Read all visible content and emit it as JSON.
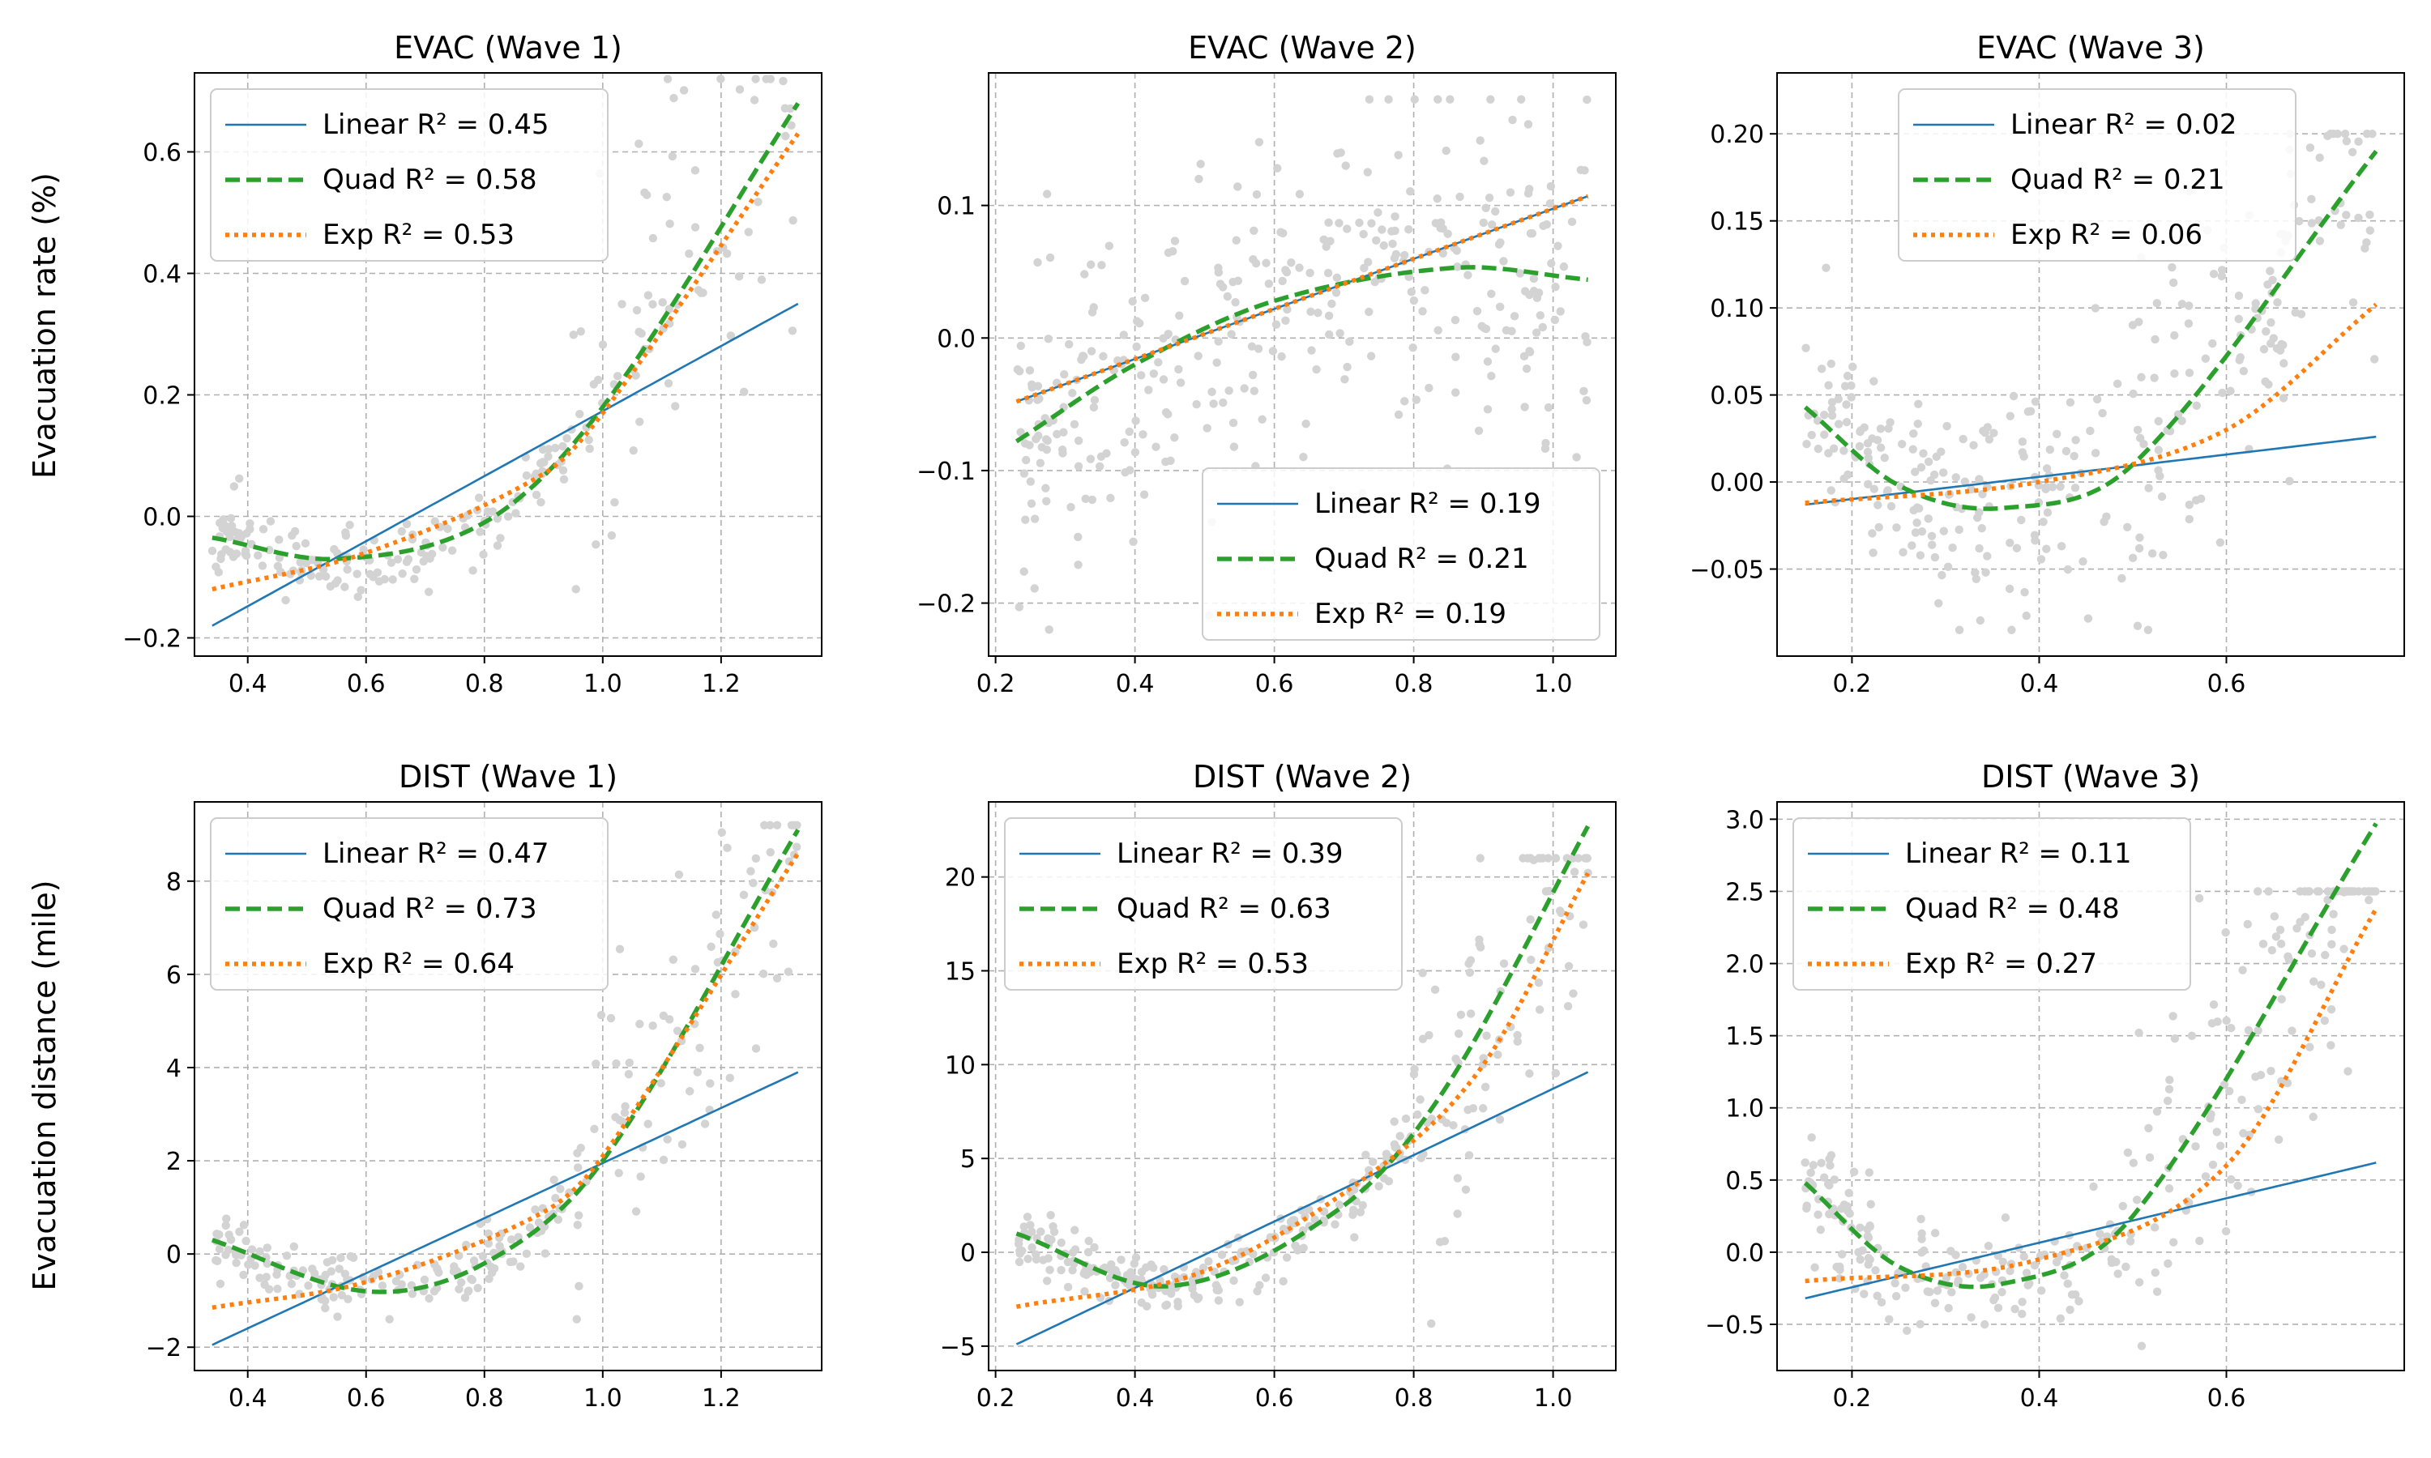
{
  "figure": {
    "row_labels": [
      "Evacuation rate (%)",
      "Evacuation distance (mile)"
    ]
  },
  "colors": {
    "linear": "#1f77b4",
    "quad": "#2ca02c",
    "exp": "#ff7f0e",
    "scatter": "#d3d3d3",
    "grid": "#b0b0b0"
  },
  "chart_data": [
    {
      "type": "scatter",
      "title": "EVAC (Wave 1)",
      "xlabel": "",
      "ylabel": "Evacuation rate (%)",
      "xlim": [
        0.31,
        1.37
      ],
      "ylim": [
        -0.23,
        0.73
      ],
      "xticks": [
        0.4,
        0.6,
        0.8,
        1.0,
        1.2
      ],
      "yticks": [
        -0.2,
        0.0,
        0.2,
        0.4,
        0.6
      ],
      "decimals": 1,
      "grid": true,
      "legend_position": "upper-left",
      "scatter": {
        "x0": 0.34,
        "x1": 1.33,
        "n": 230,
        "mode": "quad",
        "noise_lo": 0.03,
        "noise_hi": 0.18,
        "pivot": 0.95,
        "ymin": -0.21,
        "ymax": 0.72,
        "seed": 11
      },
      "series": [
        {
          "name": "Linear",
          "r2": "0.45",
          "fit": "linear",
          "points": [
            [
              0.34,
              -0.18
            ],
            [
              1.33,
              0.35
            ]
          ]
        },
        {
          "name": "Quad",
          "r2": "0.58",
          "fit": "quad",
          "points": [
            [
              0.34,
              -0.035
            ],
            [
              0.55,
              -0.07
            ],
            [
              0.8,
              -0.01
            ],
            [
              1.0,
              0.18
            ],
            [
              1.33,
              0.68
            ]
          ]
        },
        {
          "name": "Exp",
          "r2": "0.53",
          "fit": "exp",
          "points": [
            [
              0.34,
              -0.12
            ],
            [
              0.6,
              -0.06
            ],
            [
              0.9,
              0.07
            ],
            [
              1.0,
              0.17
            ],
            [
              1.33,
              0.63
            ]
          ]
        }
      ],
      "legend": [
        "Linear R² = 0.45",
        "Quad R² = 0.58",
        "Exp R² = 0.53"
      ]
    },
    {
      "type": "scatter",
      "title": "EVAC (Wave 2)",
      "xlabel": "",
      "ylabel": "",
      "xlim": [
        0.19,
        1.09
      ],
      "ylim": [
        -0.24,
        0.2
      ],
      "xticks": [
        0.2,
        0.4,
        0.6,
        0.8,
        1.0
      ],
      "yticks": [
        -0.2,
        -0.1,
        0.0,
        0.1
      ],
      "decimals": 1,
      "grid": true,
      "legend_position": "lower-right",
      "scatter": {
        "x0": 0.23,
        "x1": 1.05,
        "n": 330,
        "mode": "quad",
        "noise_lo": 0.06,
        "noise_hi": 0.06,
        "pivot": 0.6,
        "ymin": -0.22,
        "ymax": 0.18,
        "seed": 23
      },
      "series": [
        {
          "name": "Linear",
          "r2": "0.19",
          "fit": "linear",
          "points": [
            [
              0.23,
              -0.048
            ],
            [
              1.05,
              0.107
            ]
          ]
        },
        {
          "name": "Quad",
          "r2": "0.21",
          "fit": "quad",
          "points": [
            [
              0.23,
              -0.078
            ],
            [
              0.4,
              -0.02
            ],
            [
              0.6,
              0.028
            ],
            [
              0.86,
              0.053
            ],
            [
              1.05,
              0.044
            ]
          ]
        },
        {
          "name": "Exp",
          "r2": "0.19",
          "fit": "exp",
          "points": [
            [
              0.23,
              -0.048
            ],
            [
              1.05,
              0.107
            ]
          ]
        }
      ],
      "legend": [
        "Linear R² = 0.19",
        "Quad R² = 0.21",
        "Exp R² = 0.19"
      ]
    },
    {
      "type": "scatter",
      "title": "EVAC (Wave 3)",
      "xlabel": "",
      "ylabel": "",
      "xlim": [
        0.12,
        0.79
      ],
      "ylim": [
        -0.1,
        0.235
      ],
      "xticks": [
        0.2,
        0.4,
        0.6
      ],
      "yticks": [
        -0.05,
        0.0,
        0.05,
        0.1,
        0.15,
        0.2
      ],
      "decimals": 2,
      "grid": true,
      "legend_position": "upper-center",
      "scatter": {
        "x0": 0.15,
        "x1": 0.76,
        "n": 300,
        "mode": "quad",
        "noise_lo": 0.03,
        "noise_hi": 0.05,
        "pivot": 0.45,
        "ymin": -0.085,
        "ymax": 0.2,
        "seed": 37
      },
      "series": [
        {
          "name": "Linear",
          "r2": "0.02",
          "fit": "linear",
          "points": [
            [
              0.15,
              -0.013
            ],
            [
              0.76,
              0.026
            ]
          ]
        },
        {
          "name": "Quad",
          "r2": "0.21",
          "fit": "quad",
          "points": [
            [
              0.15,
              0.043
            ],
            [
              0.25,
              -0.002
            ],
            [
              0.36,
              -0.015
            ],
            [
              0.5,
              0.01
            ],
            [
              0.76,
              0.19
            ]
          ]
        },
        {
          "name": "Exp",
          "r2": "0.06",
          "fit": "exp",
          "points": [
            [
              0.15,
              -0.012
            ],
            [
              0.4,
              0.0
            ],
            [
              0.6,
              0.03
            ],
            [
              0.76,
              0.102
            ]
          ]
        }
      ],
      "legend": [
        "Linear R² = 0.02",
        "Quad R² = 0.21",
        "Exp R² = 0.06"
      ]
    },
    {
      "type": "scatter",
      "title": "DIST (Wave 1)",
      "xlabel": "",
      "ylabel": "Evacuation distance (mile)",
      "xlim": [
        0.31,
        1.37
      ],
      "ylim": [
        -2.5,
        9.7
      ],
      "xticks": [
        0.4,
        0.6,
        0.8,
        1.0,
        1.2
      ],
      "yticks": [
        -2,
        0,
        2,
        4,
        6,
        8
      ],
      "decimals": 0,
      "grid": true,
      "legend_position": "upper-left",
      "scatter": {
        "x0": 0.34,
        "x1": 1.33,
        "n": 230,
        "mode": "quad",
        "noise_lo": 0.35,
        "noise_hi": 1.8,
        "pivot": 0.95,
        "ymin": -1.4,
        "ymax": 9.2,
        "seed": 41
      },
      "series": [
        {
          "name": "Linear",
          "r2": "0.47",
          "fit": "linear",
          "points": [
            [
              0.34,
              -1.95
            ],
            [
              1.33,
              3.9
            ]
          ]
        },
        {
          "name": "Quad",
          "r2": "0.73",
          "fit": "quad",
          "points": [
            [
              0.34,
              0.3
            ],
            [
              0.6,
              -0.8
            ],
            [
              0.8,
              -0.2
            ],
            [
              1.0,
              2.0
            ],
            [
              1.33,
              9.1
            ]
          ]
        },
        {
          "name": "Exp",
          "r2": "0.64",
          "fit": "exp",
          "points": [
            [
              0.34,
              -1.15
            ],
            [
              0.6,
              -0.6
            ],
            [
              0.9,
              0.9
            ],
            [
              1.0,
              2.1
            ],
            [
              1.33,
              8.6
            ]
          ]
        }
      ],
      "legend": [
        "Linear R² = 0.47",
        "Quad R² = 0.73",
        "Exp R² = 0.64"
      ]
    },
    {
      "type": "scatter",
      "title": "DIST (Wave 2)",
      "xlabel": "",
      "ylabel": "",
      "xlim": [
        0.19,
        1.09
      ],
      "ylim": [
        -6.3,
        24
      ],
      "xticks": [
        0.2,
        0.4,
        0.6,
        0.8,
        1.0
      ],
      "yticks": [
        -5,
        0,
        5,
        10,
        15,
        20
      ],
      "decimals": 0,
      "grid": true,
      "legend_position": "upper-left",
      "scatter": {
        "x0": 0.23,
        "x1": 1.05,
        "n": 300,
        "mode": "quad",
        "noise_lo": 0.8,
        "noise_hi": 4.5,
        "pivot": 0.8,
        "ymin": -3.8,
        "ymax": 21,
        "seed": 53
      },
      "series": [
        {
          "name": "Linear",
          "r2": "0.39",
          "fit": "linear",
          "points": [
            [
              0.23,
              -4.9
            ],
            [
              1.05,
              9.6
            ]
          ]
        },
        {
          "name": "Quad",
          "r2": "0.63",
          "fit": "quad",
          "points": [
            [
              0.23,
              1.0
            ],
            [
              0.45,
              -1.8
            ],
            [
              0.7,
              2.5
            ],
            [
              0.85,
              9.0
            ],
            [
              1.05,
              22.7
            ]
          ]
        },
        {
          "name": "Exp",
          "r2": "0.53",
          "fit": "exp",
          "points": [
            [
              0.23,
              -2.9
            ],
            [
              0.5,
              -1.0
            ],
            [
              0.75,
              4.5
            ],
            [
              0.9,
              10.0
            ],
            [
              1.05,
              20.2
            ]
          ]
        }
      ],
      "legend": [
        "Linear R² = 0.39",
        "Quad R² = 0.63",
        "Exp R² = 0.53"
      ]
    },
    {
      "type": "scatter",
      "title": "DIST (Wave 3)",
      "xlabel": "",
      "ylabel": "",
      "xlim": [
        0.12,
        0.79
      ],
      "ylim": [
        -0.82,
        3.12
      ],
      "xticks": [
        0.2,
        0.4,
        0.6
      ],
      "yticks": [
        -0.5,
        0.0,
        0.5,
        1.0,
        1.5,
        2.0,
        2.5,
        3.0
      ],
      "decimals": 1,
      "grid": true,
      "legend_position": "upper-left",
      "scatter": {
        "x0": 0.15,
        "x1": 0.76,
        "n": 280,
        "mode": "quad",
        "noise_lo": 0.18,
        "noise_hi": 0.6,
        "pivot": 0.5,
        "ymin": -0.65,
        "ymax": 2.5,
        "seed": 67
      },
      "series": [
        {
          "name": "Linear",
          "r2": "0.11",
          "fit": "linear",
          "points": [
            [
              0.15,
              -0.32
            ],
            [
              0.76,
              0.62
            ]
          ]
        },
        {
          "name": "Quad",
          "r2": "0.48",
          "fit": "quad",
          "points": [
            [
              0.15,
              0.48
            ],
            [
              0.25,
              -0.1
            ],
            [
              0.36,
              -0.22
            ],
            [
              0.5,
              0.25
            ],
            [
              0.76,
              2.97
            ]
          ]
        },
        {
          "name": "Exp",
          "r2": "0.27",
          "fit": "exp",
          "points": [
            [
              0.15,
              -0.2
            ],
            [
              0.4,
              -0.05
            ],
            [
              0.6,
              0.6
            ],
            [
              0.76,
              2.38
            ]
          ]
        }
      ],
      "legend": [
        "Linear R² = 0.11",
        "Quad R² = 0.48",
        "Exp R² = 0.27"
      ]
    }
  ]
}
